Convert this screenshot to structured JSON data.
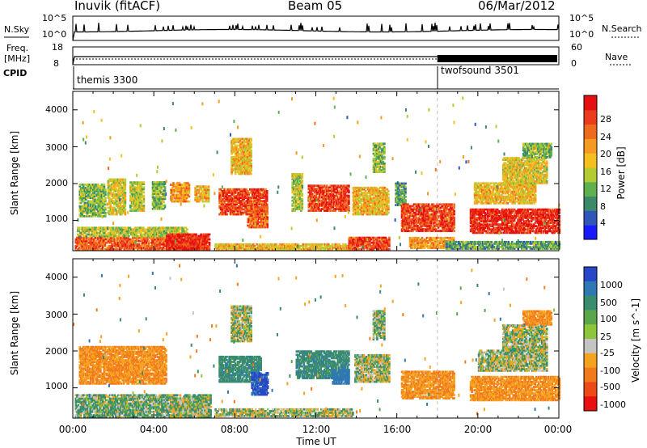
{
  "header": {
    "station": "Inuvik (fitACF)",
    "beam": "Beam 05",
    "date": "06/Mar/2012"
  },
  "nsky": {
    "left_label": "N.Sky",
    "right_label": "N.Search",
    "left_ticks": [
      "10^5",
      "10^0"
    ],
    "right_ticks": [
      "10^5",
      "10^0"
    ]
  },
  "freq": {
    "left_label": "Freq.",
    "left_unit": "[MHz]",
    "right_label": "Nave",
    "left_ticks": [
      "18",
      "8"
    ],
    "right_ticks": [
      "60",
      "0"
    ]
  },
  "cpid": {
    "label": "CPID",
    "segments": [
      {
        "name": "themis 3300",
        "start_hour": 0
      },
      {
        "name": "twofsound 3501",
        "start_hour": 18
      }
    ]
  },
  "time_axis": {
    "label": "Time UT",
    "ticks": [
      "00:00",
      "04:00",
      "08:00",
      "12:00",
      "16:00",
      "20:00",
      "00:00"
    ],
    "range_hours": [
      0,
      24
    ]
  },
  "range_axis": {
    "label": "Slant Range [km]",
    "ticks": [
      "1000",
      "2000",
      "3000",
      "4000"
    ],
    "range_km": [
      180,
      4500
    ]
  },
  "power_scale": {
    "label": "Power [dB]",
    "ticks": [
      "4",
      "8",
      "12",
      "16",
      "20",
      "24",
      "28"
    ],
    "colors": [
      "#1a1aff",
      "#2f56b8",
      "#3a8a6a",
      "#5fb04f",
      "#b4cc30",
      "#f4c020",
      "#f59a20",
      "#f06a1e",
      "#ec3a1c",
      "#e60f10"
    ]
  },
  "velocity_scale": {
    "label": "Velocity [m s^-1]",
    "ticks": [
      "1000",
      "500",
      "100",
      "25",
      "-25",
      "-100",
      "-500",
      "-1000"
    ],
    "colors": [
      "#2846c8",
      "#2f78b4",
      "#3a8c6e",
      "#5aa64a",
      "#8ec63a",
      "#c4c4c4",
      "#f5a21e",
      "#f27a1c",
      "#ee4a18",
      "#e81010"
    ]
  },
  "chart_data": {
    "type": "heatmap",
    "title": "Inuvik (fitACF) Beam 05 06/Mar/2012",
    "xlabel": "Time UT",
    "ylabel": "Slant Range [km]",
    "xlim_hours": [
      0,
      24
    ],
    "ylim_km": [
      180,
      4500
    ],
    "power_patches": [
      {
        "t0": 0.1,
        "t1": 6.6,
        "r0": 200,
        "r1": 560,
        "p": 24
      },
      {
        "t0": 0.2,
        "t1": 5.6,
        "r0": 560,
        "r1": 820,
        "p": 14
      },
      {
        "t0": 4.6,
        "t1": 6.7,
        "r0": 200,
        "r1": 620,
        "p": 28
      },
      {
        "t0": 7.0,
        "t1": 13.8,
        "r0": 200,
        "r1": 380,
        "p": 18
      },
      {
        "t0": 13.6,
        "t1": 15.6,
        "r0": 200,
        "r1": 520,
        "p": 26
      },
      {
        "t0": 16.6,
        "t1": 18.8,
        "r0": 240,
        "r1": 520,
        "p": 20
      },
      {
        "t0": 18.4,
        "t1": 24.0,
        "r0": 220,
        "r1": 420,
        "p": 10
      },
      {
        "t0": 0.3,
        "t1": 1.6,
        "r0": 1100,
        "r1": 2000,
        "p": 12
      },
      {
        "t0": 1.7,
        "t1": 2.6,
        "r0": 1150,
        "r1": 2100,
        "p": 16
      },
      {
        "t0": 2.8,
        "t1": 3.5,
        "r0": 1250,
        "r1": 2050,
        "p": 14
      },
      {
        "t0": 3.9,
        "t1": 4.5,
        "r0": 1300,
        "r1": 2050,
        "p": 12
      },
      {
        "t0": 4.8,
        "t1": 5.7,
        "r0": 1500,
        "r1": 2000,
        "p": 20
      },
      {
        "t0": 6.0,
        "t1": 6.7,
        "r0": 1500,
        "r1": 1950,
        "p": 18
      },
      {
        "t0": 7.2,
        "t1": 9.6,
        "r0": 1150,
        "r1": 1850,
        "p": 26
      },
      {
        "t0": 8.6,
        "t1": 9.6,
        "r0": 800,
        "r1": 1350,
        "p": 24
      },
      {
        "t0": 7.8,
        "t1": 8.8,
        "r0": 2250,
        "r1": 3200,
        "p": 18
      },
      {
        "t0": 10.8,
        "t1": 11.3,
        "r0": 1250,
        "r1": 2250,
        "p": 14
      },
      {
        "t0": 11.6,
        "t1": 13.6,
        "r0": 1250,
        "r1": 1950,
        "p": 26
      },
      {
        "t0": 13.8,
        "t1": 15.6,
        "r0": 1150,
        "r1": 1900,
        "p": 18
      },
      {
        "t0": 14.8,
        "t1": 15.4,
        "r0": 2300,
        "r1": 3100,
        "p": 12
      },
      {
        "t0": 15.9,
        "t1": 16.4,
        "r0": 1400,
        "r1": 2000,
        "p": 10
      },
      {
        "t0": 16.2,
        "t1": 18.8,
        "r0": 700,
        "r1": 1450,
        "p": 26
      },
      {
        "t0": 19.6,
        "t1": 24.0,
        "r0": 650,
        "r1": 1300,
        "p": 28
      },
      {
        "t0": 19.8,
        "t1": 22.8,
        "r0": 1450,
        "r1": 2000,
        "p": 18
      },
      {
        "t0": 21.2,
        "t1": 23.4,
        "r0": 2000,
        "r1": 2700,
        "p": 16
      },
      {
        "t0": 22.2,
        "t1": 23.6,
        "r0": 2700,
        "r1": 3100,
        "p": 12
      }
    ],
    "velocity_patches": [
      {
        "t0": 0.3,
        "t1": 4.6,
        "r0": 1100,
        "r1": 2100,
        "v": -300
      },
      {
        "t0": 0.1,
        "t1": 6.8,
        "r0": 200,
        "r1": 800,
        "v": 60
      },
      {
        "t0": 4.8,
        "t1": 6.7,
        "r0": 200,
        "r1": 700,
        "v": 0
      },
      {
        "t0": 7.0,
        "t1": 13.8,
        "r0": 220,
        "r1": 420,
        "v": 0
      },
      {
        "t0": 7.2,
        "t1": 9.3,
        "r0": 1150,
        "r1": 1850,
        "v": 200
      },
      {
        "t0": 8.8,
        "t1": 9.6,
        "r0": 800,
        "r1": 1400,
        "v": 800
      },
      {
        "t0": 7.8,
        "t1": 8.8,
        "r0": 2250,
        "r1": 3200,
        "v": 0
      },
      {
        "t0": 11.0,
        "t1": 13.6,
        "r0": 1250,
        "r1": 2000,
        "v": 200
      },
      {
        "t0": 12.8,
        "t1": 13.6,
        "r0": 1100,
        "r1": 1500,
        "v": 600
      },
      {
        "t0": 13.9,
        "t1": 15.6,
        "r0": 1150,
        "r1": 1900,
        "v": 0
      },
      {
        "t0": 14.8,
        "t1": 15.4,
        "r0": 2300,
        "r1": 3100,
        "v": 40
      },
      {
        "t0": 16.2,
        "t1": 18.8,
        "r0": 700,
        "r1": 1450,
        "v": -300
      },
      {
        "t0": 19.6,
        "t1": 24.0,
        "r0": 650,
        "r1": 1300,
        "v": -300
      },
      {
        "t0": 20.0,
        "t1": 23.4,
        "r0": 1450,
        "r1": 2000,
        "v": 0
      },
      {
        "t0": 21.2,
        "t1": 23.4,
        "r0": 2000,
        "r1": 2700,
        "v": 0
      },
      {
        "t0": 22.2,
        "t1": 23.6,
        "r0": 2700,
        "r1": 3100,
        "v": -300
      }
    ]
  }
}
